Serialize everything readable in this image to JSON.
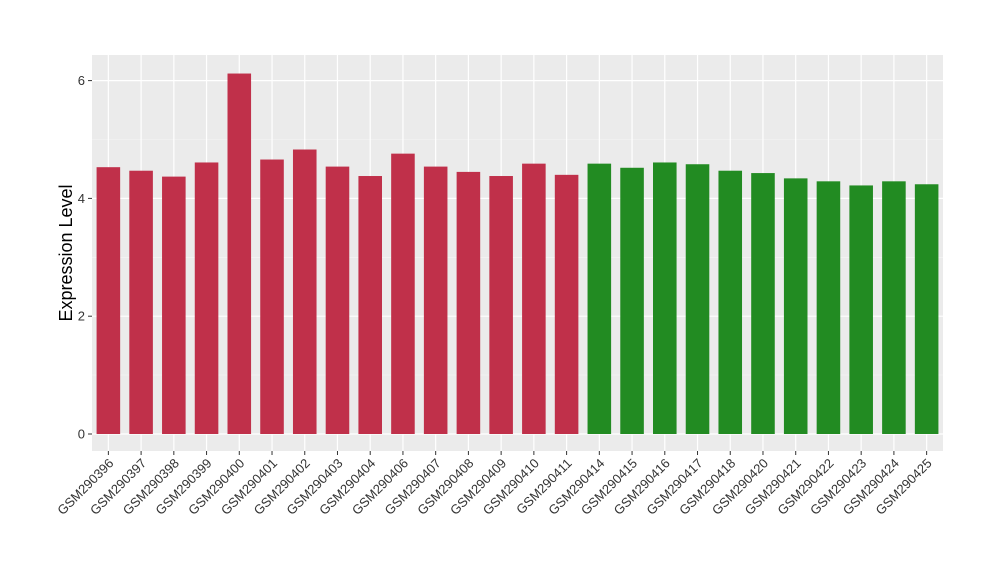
{
  "chart_data": {
    "type": "bar",
    "title": "",
    "xlabel": "",
    "ylabel": "Expression Level",
    "ylim": [
      0,
      6.4
    ],
    "yticks": [
      0,
      2,
      4,
      6
    ],
    "grid": true,
    "legend": "none",
    "categories": [
      "GSM290396",
      "GSM290397",
      "GSM290398",
      "GSM290399",
      "GSM290400",
      "GSM290401",
      "GSM290402",
      "GSM290403",
      "GSM290404",
      "GSM290406",
      "GSM290407",
      "GSM290408",
      "GSM290409",
      "GSM290410",
      "GSM290411",
      "GSM290414",
      "GSM290415",
      "GSM290416",
      "GSM290417",
      "GSM290418",
      "GSM290420",
      "GSM290421",
      "GSM290422",
      "GSM290423",
      "GSM290424",
      "GSM290425"
    ],
    "values": [
      4.53,
      4.47,
      4.37,
      4.61,
      6.12,
      4.66,
      4.83,
      4.54,
      4.38,
      4.76,
      4.54,
      4.45,
      4.38,
      4.59,
      4.4,
      4.59,
      4.52,
      4.61,
      4.58,
      4.47,
      4.43,
      4.34,
      4.29,
      4.22,
      4.29,
      4.24
    ],
    "groups": [
      0,
      0,
      0,
      0,
      0,
      0,
      0,
      0,
      0,
      0,
      0,
      0,
      0,
      0,
      0,
      1,
      1,
      1,
      1,
      1,
      1,
      1,
      1,
      1,
      1,
      1
    ],
    "group_colors": [
      "#c0304a",
      "#228b22"
    ]
  }
}
